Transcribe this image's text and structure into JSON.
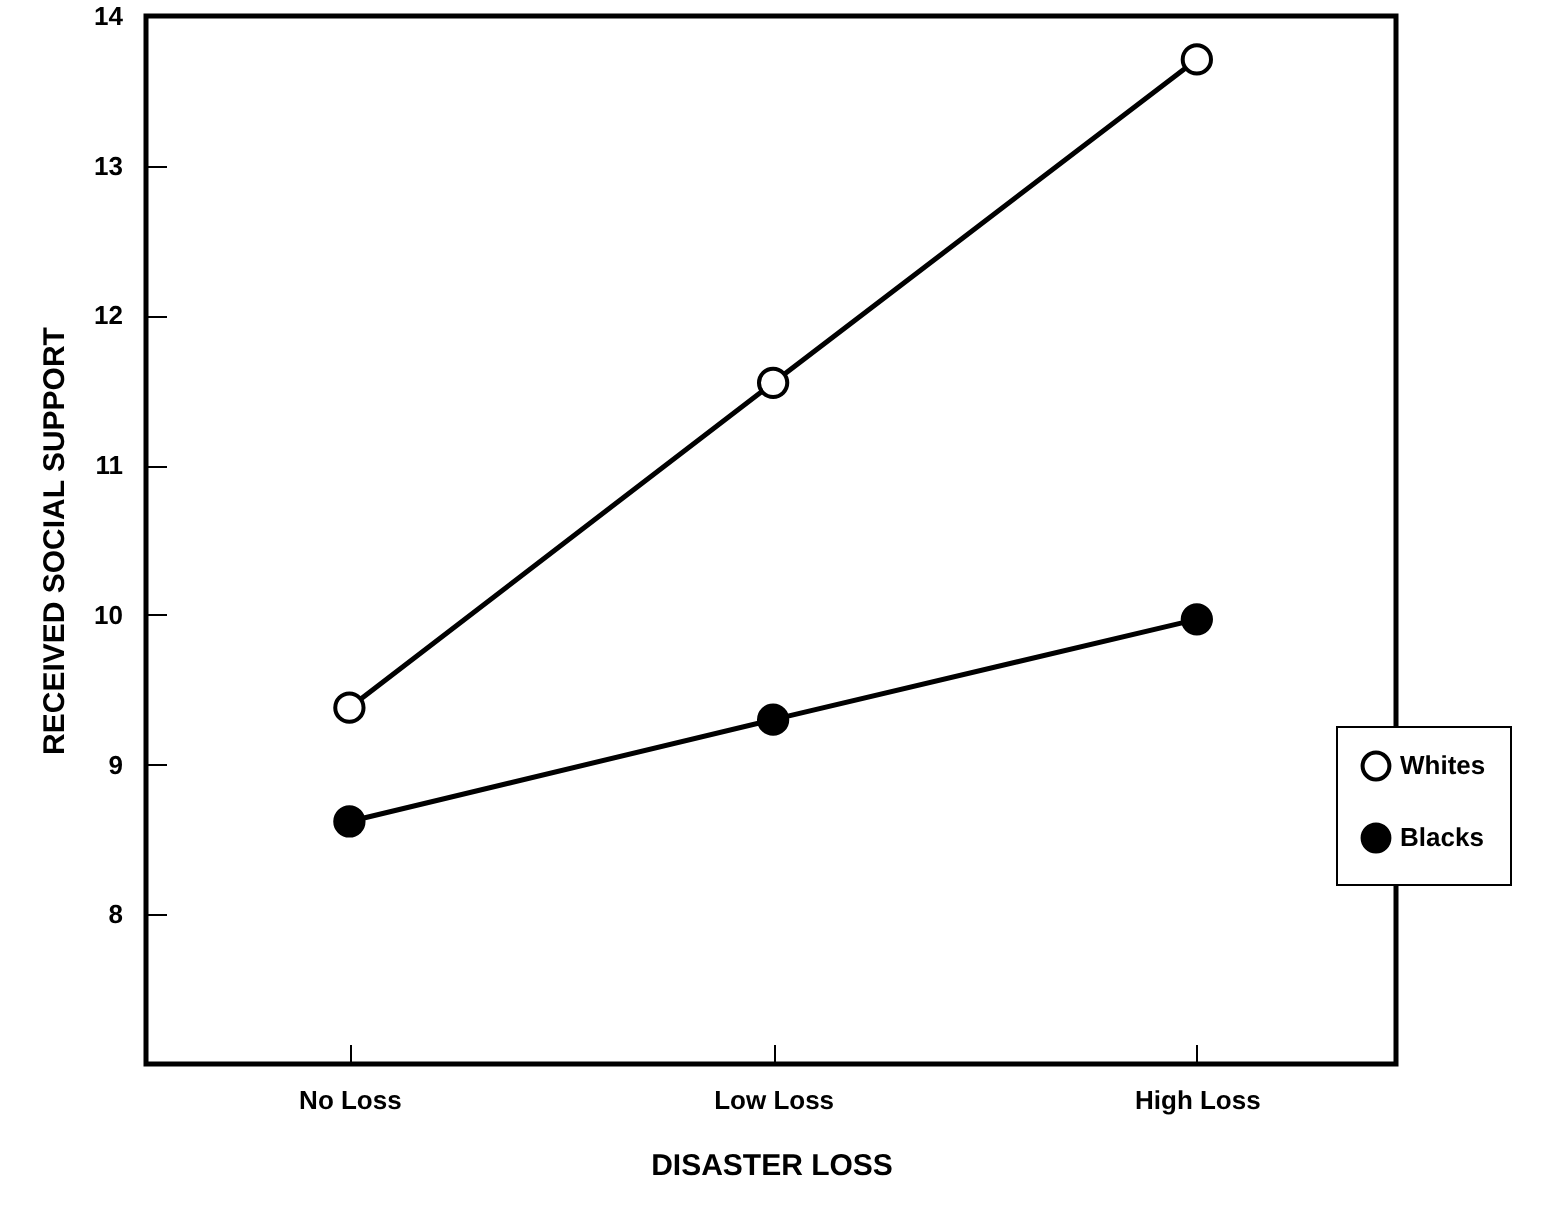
{
  "chart_data": {
    "type": "line",
    "xlabel": "DISASTER LOSS",
    "ylabel": "RECEIVED SOCIAL SUPPORT",
    "categories": [
      "No Loss",
      "Low Loss",
      "High Loss"
    ],
    "series": [
      {
        "name": "Whites",
        "color": "#000000",
        "values": [
          9.38,
          11.55,
          13.71
        ]
      },
      {
        "name": "Blacks",
        "color": "#000000",
        "values": [
          8.62,
          9.3,
          9.97
        ]
      }
    ],
    "ylim": [
      7,
      14
    ],
    "yticks": [
      8,
      9,
      10,
      11,
      12,
      13,
      14
    ],
    "grid": false,
    "legend": "right",
    "marker": "circle",
    "line_style": "solid"
  }
}
